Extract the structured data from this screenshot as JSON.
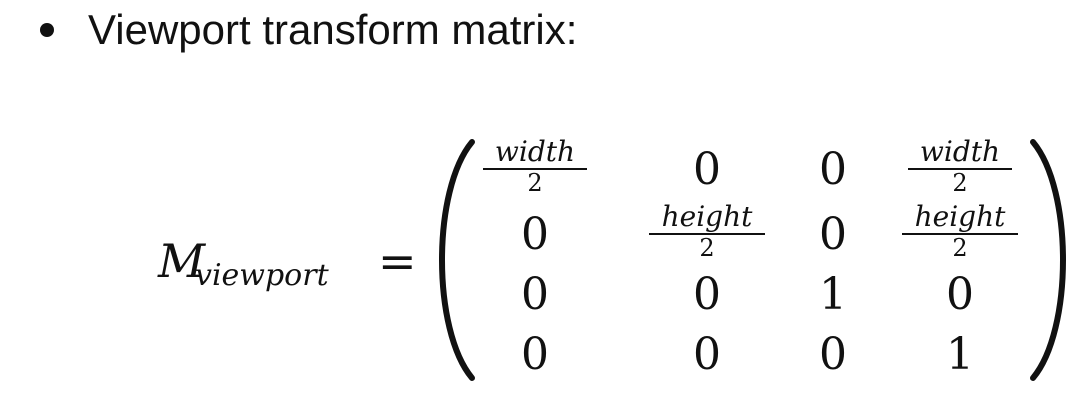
{
  "bullet": {
    "text": "Viewport transform matrix:"
  },
  "equation": {
    "lhs_symbol": "M",
    "lhs_subscript": "viewport",
    "equals": "=",
    "matrix": {
      "rows": [
        [
          {
            "type": "frac",
            "num": "width",
            "den": "2"
          },
          {
            "type": "val",
            "text": "0"
          },
          {
            "type": "val",
            "text": "0"
          },
          {
            "type": "frac",
            "num": "width",
            "den": "2"
          }
        ],
        [
          {
            "type": "val",
            "text": "0"
          },
          {
            "type": "frac",
            "num": "height",
            "den": "2"
          },
          {
            "type": "val",
            "text": "0"
          },
          {
            "type": "frac",
            "num": "height",
            "den": "2"
          }
        ],
        [
          {
            "type": "val",
            "text": "0"
          },
          {
            "type": "val",
            "text": "0"
          },
          {
            "type": "val",
            "text": "1"
          },
          {
            "type": "val",
            "text": "0"
          }
        ],
        [
          {
            "type": "val",
            "text": "0"
          },
          {
            "type": "val",
            "text": "0"
          },
          {
            "type": "val",
            "text": "0"
          },
          {
            "type": "val",
            "text": "1"
          }
        ]
      ]
    }
  }
}
